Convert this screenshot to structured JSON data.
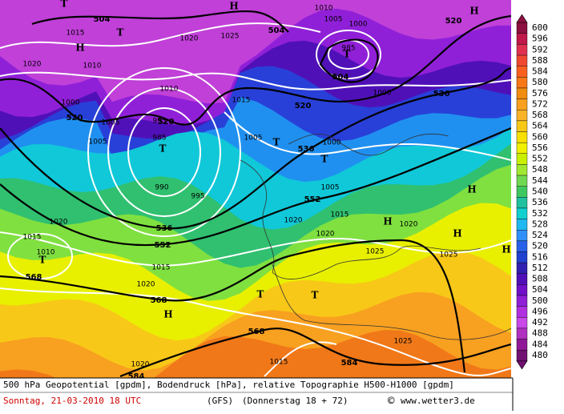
{
  "map": {
    "labels": [
      504,
      504,
      504,
      520,
      520,
      520,
      520,
      536,
      536,
      536,
      552,
      552,
      568,
      568,
      568,
      584,
      584,
      1015,
      1020,
      1020,
      1025,
      1010,
      1010,
      1000,
      1005,
      1005,
      1015,
      1005,
      995,
      985,
      990,
      995,
      1000,
      1005,
      1015,
      1020,
      1020,
      1020,
      1025,
      1025,
      1025,
      1020,
      1015,
      1010,
      1015,
      1020,
      1015,
      1020,
      1000,
      985,
      1010,
      1005,
      1000,
      "H",
      "H",
      "H",
      "H",
      "H",
      "H",
      "H",
      "H",
      "T",
      "T",
      "T",
      "T",
      "T",
      "T",
      "T",
      "T",
      "T"
    ]
  },
  "colorbar": {
    "labels": [
      600,
      596,
      592,
      588,
      584,
      580,
      576,
      572,
      568,
      564,
      560,
      556,
      552,
      548,
      544,
      540,
      536,
      532,
      528,
      524,
      520,
      516,
      512,
      508,
      504,
      500,
      496,
      492,
      488,
      484,
      480
    ],
    "colors": [
      "#8c1040",
      "#c01848",
      "#e03050",
      "#f04830",
      "#f86020",
      "#f87818",
      "#f08c10",
      "#f8a020",
      "#f8b428",
      "#f8c818",
      "#f8e000",
      "#f0f000",
      "#c8f000",
      "#a0e830",
      "#70d850",
      "#40c860",
      "#20c0a0",
      "#10d0d0",
      "#20b8f0",
      "#3090f8",
      "#2860e8",
      "#2040d0",
      "#3020b0",
      "#5010b8",
      "#7010c8",
      "#9020d8",
      "#b030e0",
      "#c848e8",
      "#b030c0",
      "#901898",
      "#701070"
    ]
  },
  "footer": {
    "description": "500 hPa Geopotential [gpdm], Bodendruck [hPa], relative Topographie H500-H1000 [gpdm]",
    "date": "Sonntag, 21-03-2010  18 UTC",
    "model": "(GFS)",
    "forecast": "(Donnerstag 18 + 72)",
    "copyright": "©",
    "site": "www.wetter3.de"
  }
}
